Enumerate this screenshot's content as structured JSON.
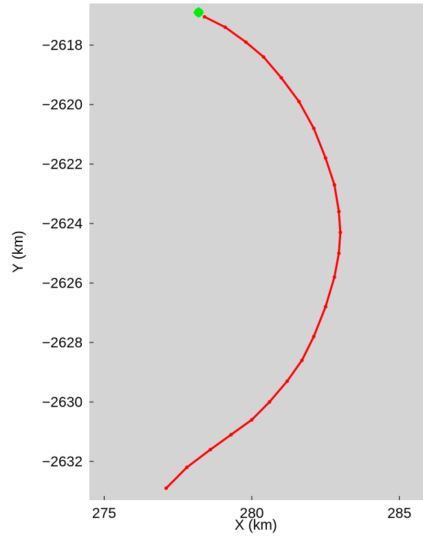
{
  "chart_data": {
    "type": "scatter",
    "xlabel": "X (km)",
    "ylabel": "Y (km)",
    "xlim": [
      274.5,
      285.8
    ],
    "ylim": [
      -2633.3,
      -2616.6
    ],
    "x_ticks": [
      275,
      280,
      285
    ],
    "y_ticks": [
      -2618,
      -2620,
      -2622,
      -2624,
      -2626,
      -2628,
      -2630,
      -2632
    ],
    "grid": false,
    "background_color": "#d4d4d4",
    "series": [
      {
        "color": "#ff0000",
        "marker": "dot",
        "x": [
          277.1,
          277.8,
          278.6,
          279.3,
          280.0,
          280.6,
          281.2,
          281.7,
          282.1,
          282.5,
          282.8,
          282.95,
          283.0,
          282.95,
          282.8,
          282.5,
          282.1,
          281.6,
          281.0,
          280.4,
          279.8,
          279.1,
          278.4
        ],
        "y": [
          -2632.9,
          -2632.2,
          -2631.6,
          -2631.1,
          -2630.6,
          -2630.0,
          -2629.3,
          -2628.6,
          -2627.8,
          -2626.8,
          -2625.8,
          -2625.0,
          -2624.3,
          -2623.6,
          -2622.7,
          -2621.8,
          -2620.8,
          -2619.9,
          -2619.1,
          -2618.4,
          -2617.9,
          -2617.4,
          -2617.05
        ]
      },
      {
        "color": "#00ee00",
        "marker": "diamond",
        "x": [
          278.2
        ],
        "y": [
          -2616.9
        ]
      }
    ]
  }
}
